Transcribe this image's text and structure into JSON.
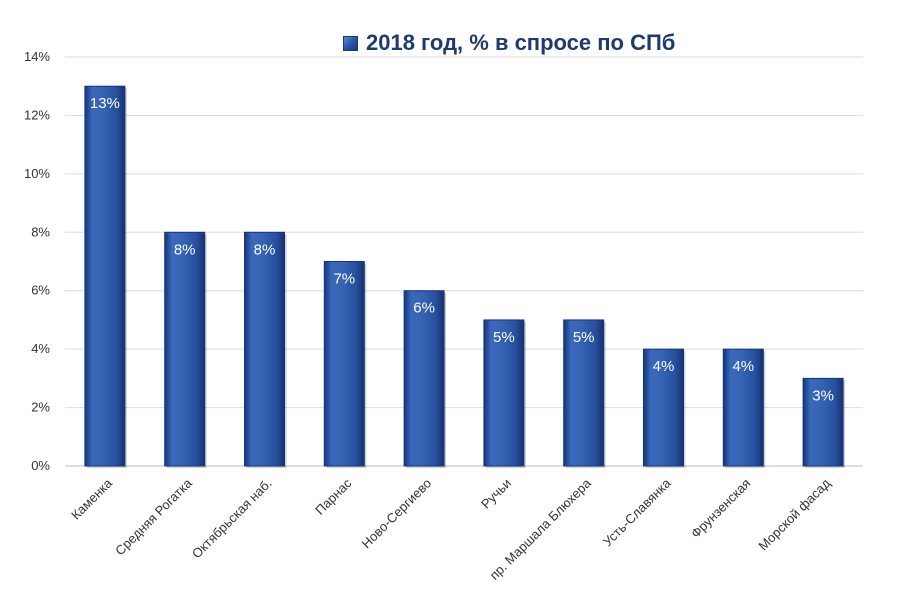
{
  "chart_data": {
    "type": "bar",
    "title": "",
    "xlabel": "",
    "ylabel": "",
    "ylim": [
      0,
      14
    ],
    "yticks": [
      "0%",
      "2%",
      "4%",
      "6%",
      "8%",
      "10%",
      "12%",
      "14%"
    ],
    "grid": true,
    "legend_position": "top-right",
    "categories": [
      "Каменка",
      "Средняя Рогатка",
      "Октябрьская наб.",
      "Парнас",
      "Ново-Сергиево",
      "Ручьи",
      "пр. Маршала Блюхера",
      "Усть-Славянка",
      "Фрунзенская",
      "Морской фасад"
    ],
    "series": [
      {
        "name": "2018 год, % в спросе по СПб",
        "values": [
          13,
          8,
          8,
          7,
          6,
          5,
          5,
          4,
          4,
          3
        ],
        "labels": [
          "13%",
          "8%",
          "8%",
          "7%",
          "6%",
          "5%",
          "5%",
          "4%",
          "4%",
          "3%"
        ]
      }
    ],
    "colors": {
      "bar": "#2e5aa8",
      "bar_dark": "#17357a",
      "bar_light": "#5b8ad6",
      "label": "#ffffff",
      "grid": "#d9dde6",
      "axis_text": "#333333",
      "legend_text": "#1f3b6e"
    }
  }
}
